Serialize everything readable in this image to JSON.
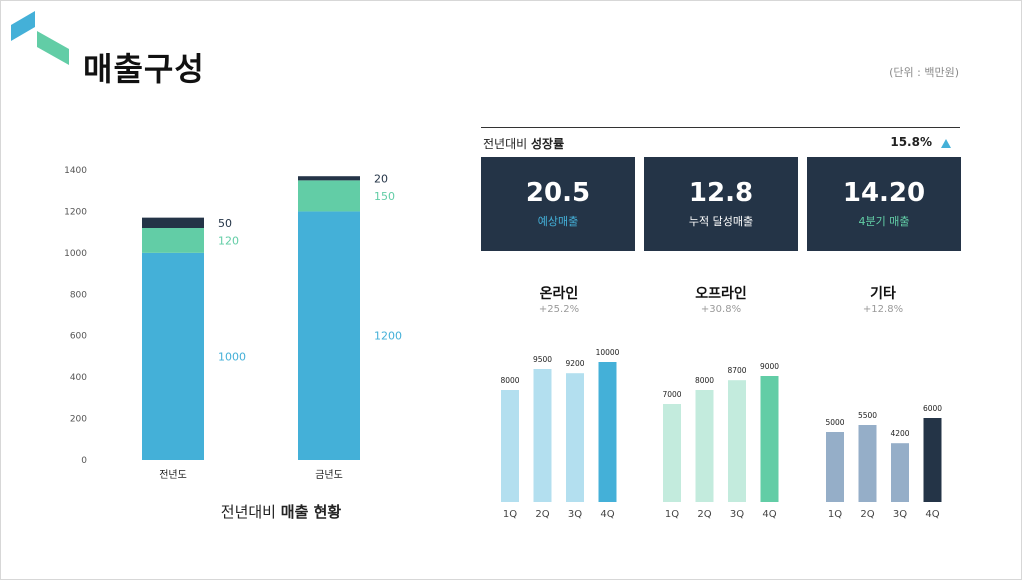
{
  "header": {
    "title": "매출구성",
    "unit": "(단위 : 백만원)"
  },
  "colors": {
    "dark": "#243447",
    "blue": "#44b0d8",
    "green": "#62cda6",
    "light_blue": "#b3dfef",
    "light_green": "#c3ebdd",
    "slate": "#95aec8"
  },
  "left_caption": {
    "normal": "전년대비",
    "bold": "매출 현황"
  },
  "growth": {
    "label_normal": "전년대비",
    "label_bold": "성장률",
    "value": "15.8%"
  },
  "kpis": [
    {
      "value": "20.5",
      "label": "예상매출",
      "label_color": "#44b0d8"
    },
    {
      "value": "12.8",
      "label": "누적 달성매출",
      "label_color": "#ffffff"
    },
    {
      "value": "14.20",
      "label": "4분기 매출",
      "label_color": "#62cda6"
    }
  ],
  "chart_data": [
    {
      "type": "bar",
      "stacked": true,
      "categories": [
        "전년도",
        "금년도"
      ],
      "ylim": [
        0,
        1400
      ],
      "yticks": [
        0,
        200,
        400,
        600,
        800,
        1000,
        1200,
        1400
      ],
      "series": [
        {
          "values": [
            1000,
            1200
          ],
          "color": "#44b0d8"
        },
        {
          "values": [
            120,
            150
          ],
          "color": "#62cda6"
        },
        {
          "values": [
            50,
            20
          ],
          "color": "#243447"
        }
      ],
      "title": "",
      "xlabel": "",
      "ylabel": "",
      "grid": false
    },
    {
      "type": "bar",
      "title": "온라인",
      "subtitle": "+25.2%",
      "categories": [
        "1Q",
        "2Q",
        "3Q",
        "4Q"
      ],
      "values": [
        8000,
        9500,
        9200,
        10000
      ],
      "colors": [
        "#b3dfef",
        "#b3dfef",
        "#b3dfef",
        "#44b0d8"
      ],
      "ylim": [
        0,
        11000
      ],
      "grid": false
    },
    {
      "type": "bar",
      "title": "오프라인",
      "subtitle": "+30.8%",
      "categories": [
        "1Q",
        "2Q",
        "3Q",
        "4Q"
      ],
      "values": [
        7000,
        8000,
        8700,
        9000
      ],
      "colors": [
        "#c3ebdd",
        "#c3ebdd",
        "#c3ebdd",
        "#62cda6"
      ],
      "ylim": [
        0,
        11000
      ],
      "grid": false
    },
    {
      "type": "bar",
      "title": "기타",
      "subtitle": "+12.8%",
      "categories": [
        "1Q",
        "2Q",
        "3Q",
        "4Q"
      ],
      "values": [
        5000,
        5500,
        4200,
        6000
      ],
      "colors": [
        "#95aec8",
        "#95aec8",
        "#95aec8",
        "#243447"
      ],
      "ylim": [
        0,
        11000
      ],
      "grid": false
    }
  ]
}
